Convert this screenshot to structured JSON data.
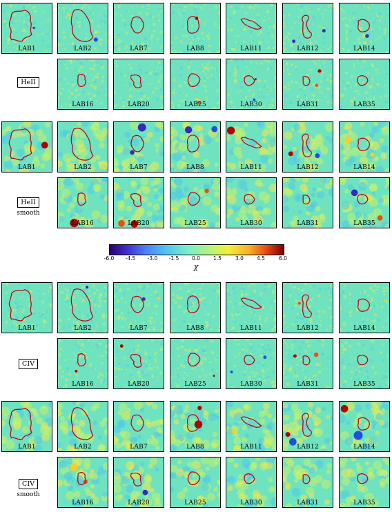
{
  "blocks": [
    {
      "row_label": "",
      "sub_label": "",
      "labels": [
        "LAB1",
        "LAB2",
        "LAB7",
        "LAB8",
        "LAB11",
        "LAB12",
        "LAB14"
      ]
    },
    {
      "row_label": "HeII",
      "sub_label": "",
      "labels": [
        "LAB16",
        "LAB20",
        "LAB25",
        "LAB30",
        "LAB31",
        "LAB35"
      ]
    },
    {
      "row_label": "",
      "sub_label": "",
      "labels": [
        "LAB1",
        "LAB2",
        "LAB7",
        "LAB8",
        "LAB11",
        "LAB12",
        "LAB14"
      ]
    },
    {
      "row_label": "HeII",
      "sub_label": "smooth",
      "labels": [
        "LAB16",
        "LAB20",
        "LAB25",
        "LAB30",
        "LAB31",
        "LAB35"
      ]
    },
    {
      "row_label": "",
      "sub_label": "",
      "labels": [
        "LAB1",
        "LAB2",
        "LAB7",
        "LAB8",
        "LAB11",
        "LAB12",
        "LAB14"
      ]
    },
    {
      "row_label": "CIV",
      "sub_label": "",
      "labels": [
        "LAB16",
        "LAB20",
        "LAB25",
        "LAB30",
        "LAB31",
        "LAB35"
      ]
    },
    {
      "row_label": "",
      "sub_label": "",
      "labels": [
        "LAB1",
        "LAB2",
        "LAB7",
        "LAB8",
        "LAB11",
        "LAB12",
        "LAB14"
      ]
    },
    {
      "row_label": "CIV",
      "sub_label": "smooth",
      "labels": [
        "LAB16",
        "LAB20",
        "LAB25",
        "LAB30",
        "LAB31",
        "LAB35"
      ]
    }
  ],
  "colorbar": {
    "ticks": [
      "-6.0",
      "-4.5",
      "-3.0",
      "-1.5",
      "0.0",
      "1.5",
      "3.0",
      "4.5",
      "6.0"
    ],
    "label": "χ"
  }
}
